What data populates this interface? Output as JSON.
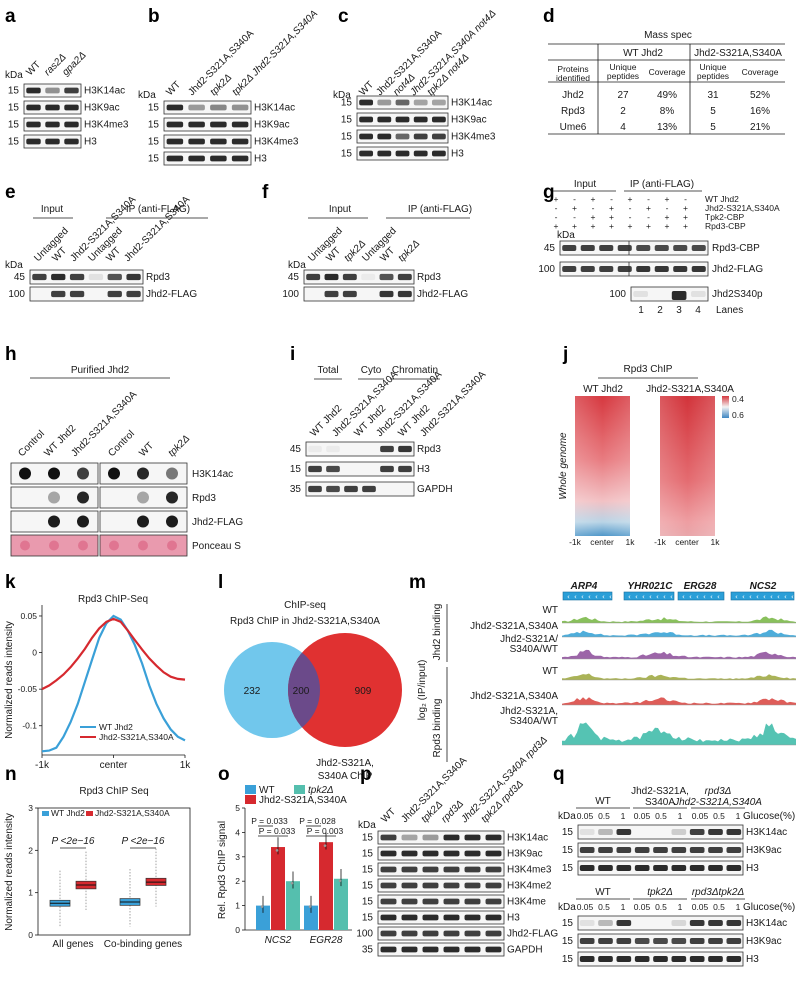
{
  "colors": {
    "wt_blue": "#3aa0d8",
    "mut_red": "#d6292f",
    "tpk2_teal": "#55bfae",
    "venn_blue": "#71c7ec",
    "venn_red": "#e03131",
    "venn_overlap": "#6b4a8a",
    "ponceau": "#e99aae",
    "track_green": "#74b540",
    "track_blue": "#2f9fd3",
    "track_purple": "#8b4a99",
    "track_olive": "#9ba63a",
    "track_red": "#d8413c",
    "track_teal": "#37b8a6"
  },
  "kda": "kDa",
  "panels": {
    "a": {
      "label": "a",
      "lanes": [
        "WT",
        "ras2Δ",
        "gpa2Δ"
      ],
      "mw": [
        "15",
        "15",
        "15",
        "15"
      ],
      "blots": [
        "H3K14ac",
        "H3K9ac",
        "H3K4me3",
        "H3"
      ]
    },
    "b": {
      "label": "b",
      "lanes": [
        "WT",
        "Jhd2-S321A,S340A",
        "tpk2Δ",
        "tpk2Δ Jhd2-S321A,S340A"
      ],
      "mw": [
        "15",
        "15",
        "15",
        "15"
      ],
      "blots": [
        "H3K14ac",
        "H3K9ac",
        "H3K4me3",
        "H3"
      ]
    },
    "c": {
      "label": "c",
      "lanes": [
        "WT",
        "Jhd2-S321A,S340A",
        "not4Δ",
        "Jhd2-S321A,S340A not4Δ",
        "tpk2Δ not4Δ"
      ],
      "mw": [
        "15",
        "15",
        "15",
        "15"
      ],
      "blots": [
        "H3K14ac",
        "H3K9ac",
        "H3K4me3",
        "H3"
      ]
    },
    "d": {
      "label": "d",
      "title": "Mass spec",
      "col_groups": [
        "WT Jhd2",
        "Jhd2-S321A,S340A"
      ],
      "row_header": "Proteins identified",
      "sub_headers": [
        "Unique peptides",
        "Coverage",
        "Unique peptides",
        "Coverage"
      ],
      "rows": [
        {
          "protein": "Jhd2",
          "values": [
            "27",
            "49%",
            "31",
            "52%"
          ]
        },
        {
          "protein": "Rpd3",
          "values": [
            "2",
            "8%",
            "5",
            "16%"
          ]
        },
        {
          "protein": "Ume6",
          "values": [
            "4",
            "13%",
            "5",
            "21%"
          ]
        }
      ]
    },
    "e": {
      "label": "e",
      "input": "Input",
      "ip": "IP (anti-FLAG)",
      "lanes": [
        "Untagged",
        "WT",
        "Jhd2-S321A,S340A",
        "Untagged",
        "WT",
        "Jhd2-S321A,S340A"
      ],
      "mw": [
        "45",
        "100"
      ],
      "blots": [
        "Rpd3",
        "Jhd2-FLAG"
      ]
    },
    "f": {
      "label": "f",
      "input": "Input",
      "ip": "IP (anti-FLAG)",
      "lanes": [
        "Untagged",
        "WT",
        "tpk2Δ",
        "Untagged",
        "WT",
        "tpk2Δ"
      ],
      "mw": [
        "45",
        "100"
      ],
      "blots": [
        "Rpd3",
        "Jhd2-FLAG"
      ]
    },
    "g": {
      "label": "g",
      "input": "Input",
      "ip": "IP (anti-FLAG)",
      "matrix_labels": [
        "WT Jhd2",
        "Jhd2-S321A,S340A",
        "Tpk2-CBP",
        "Rpd3-CBP"
      ],
      "matrix": [
        [
          "+",
          "-",
          "+",
          "-",
          "+",
          "-",
          "+",
          "-"
        ],
        [
          "-",
          "+",
          "-",
          "+",
          "-",
          "+",
          "-",
          "+"
        ],
        [
          "-",
          "-",
          "+",
          "+",
          "-",
          "-",
          "+",
          "+"
        ],
        [
          "+",
          "+",
          "+",
          "+",
          "+",
          "+",
          "+",
          "+"
        ]
      ],
      "mw": [
        "45",
        "100",
        "100"
      ],
      "blots": [
        "Rpd3-CBP",
        "Jhd2-FLAG",
        "Jhd2S340p"
      ],
      "lane_numbers": [
        "1",
        "2",
        "3",
        "4"
      ],
      "lanes_label": "Lanes"
    },
    "h": {
      "label": "h",
      "title": "Purified Jhd2",
      "lanes": [
        "Control",
        "WT Jhd2",
        "Jhd2-S321A,S340A",
        "Control",
        "WT",
        "tpk2Δ"
      ],
      "rows": [
        "H3K14ac",
        "Rpd3",
        "Jhd2-FLAG",
        "Ponceau S"
      ]
    },
    "i": {
      "label": "i",
      "groups": [
        "Total",
        "Cyto",
        "Chromatin"
      ],
      "lanes": [
        "WT Jhd2",
        "Jhd2-S321A,S340A",
        "WT Jhd2",
        "Jhd2-S321A,S340A",
        "WT Jhd2",
        "Jhd2-S321A,S340A"
      ],
      "mw": [
        "45",
        "15",
        "35"
      ],
      "blots": [
        "Rpd3",
        "H3",
        "GAPDH"
      ]
    },
    "j": {
      "label": "j",
      "title": "Rpd3 ChIP",
      "cols": [
        "WT Jhd2",
        "Jhd2-S321A,S340A"
      ],
      "ylabel": "Whole genome",
      "xticks": [
        "-1k",
        "center",
        "1k"
      ],
      "scale": [
        "0.4",
        "0.6"
      ]
    },
    "l": {
      "label": "l",
      "title": "ChIP-seq",
      "left_set": "Rpd3 ChIP in Jhd2-S321A,S340A",
      "right_set": "Jhd2-S321A, S340A ChIP",
      "counts": [
        "232",
        "200",
        "909"
      ]
    },
    "m": {
      "label": "m",
      "genes": [
        "ARP4",
        "YHR021C",
        "ERG28",
        "NCS2"
      ],
      "tracks": [
        "WT",
        "Jhd2-S321A,S340A",
        "Jhd2-S321A/ S340A/WT",
        "WT",
        "Jhd2-S321A,S340A",
        "Jhd2-S321A, S340A/WT"
      ],
      "group_top": "Jhd2 binding",
      "group_bottom": "Rpd3 binding",
      "ylabel": "log₂ (IP/input)"
    },
    "o": {
      "label": "o",
      "legend": [
        "WT",
        "tpk2Δ",
        "Jhd2-S321A,S340A"
      ],
      "pvals": [
        "P = 0.033",
        "P = 0.033",
        "P = 0.028",
        "P = 0.003"
      ]
    },
    "p": {
      "label": "p",
      "lanes": [
        "WT",
        "Jhd2-S321A,S340A",
        "tpk2Δ",
        "rpd3Δ",
        "Jhd2-S321A,S340A rpd3Δ",
        "tpk2Δ rpd3Δ"
      ],
      "mw": [
        "15",
        "15",
        "15",
        "15",
        "15",
        "15",
        "100",
        "35"
      ],
      "blots": [
        "H3K14ac",
        "H3K9ac",
        "H3K4me3",
        "H3K4me2",
        "H3K4me",
        "H3",
        "Jhd2-FLAG",
        "GAPDH"
      ]
    },
    "q": {
      "label": "q",
      "top_groups": [
        "WT",
        "Jhd2-S321A, S340A",
        "rpd3Δ Jhd2-S321A,S340A"
      ],
      "bottom_groups": [
        "WT",
        "tpk2Δ",
        "rpd3Δtpk2Δ"
      ],
      "conc": [
        "0.05",
        "0.5",
        "1"
      ],
      "glucose": "Glucose(%)",
      "mw": [
        "15",
        "15",
        "15"
      ],
      "blots": [
        "H3K14ac",
        "H3K9ac",
        "H3"
      ]
    }
  },
  "chart_data": [
    {
      "panel": "k",
      "type": "line",
      "title": "Rpd3 ChIP-Seq",
      "xlabel": "",
      "ylabel": "Normalized reads intensity",
      "x_ticks": [
        "-1k",
        "center",
        "1k"
      ],
      "y_ticks": [
        "0.05",
        "0",
        "-0.05",
        "-0.1"
      ],
      "ylim": [
        -0.14,
        0.065
      ],
      "x": [
        -1000,
        -900,
        -800,
        -700,
        -600,
        -500,
        -400,
        -300,
        -200,
        -100,
        0,
        100,
        200,
        300,
        400,
        500,
        600,
        700,
        800,
        900,
        1000
      ],
      "series": [
        {
          "name": "WT Jhd2",
          "values": [
            -0.135,
            -0.134,
            -0.13,
            -0.115,
            -0.095,
            -0.07,
            -0.04,
            -0.01,
            0.02,
            0.04,
            0.05,
            0.045,
            0.03,
            0.01,
            -0.015,
            -0.045,
            -0.07,
            -0.09,
            -0.105,
            -0.115,
            -0.12
          ]
        },
        {
          "name": "Jhd2-S321A,S340A",
          "values": [
            -0.05,
            -0.045,
            -0.038,
            -0.03,
            -0.02,
            -0.008,
            0.005,
            0.02,
            0.033,
            0.042,
            0.046,
            0.042,
            0.03,
            0.017,
            0.004,
            -0.008,
            -0.018,
            -0.027,
            -0.033,
            -0.036,
            -0.037
          ]
        }
      ]
    },
    {
      "panel": "n",
      "type": "box",
      "title": "Rpd3 ChIP Seq",
      "ylabel": "Normalized reads intensity",
      "categories": [
        "All genes",
        "Co-binding genes"
      ],
      "ylim": [
        0,
        3
      ],
      "y_ticks": [
        "0",
        "1",
        "2",
        "3"
      ],
      "series": [
        {
          "name": "WT Jhd2",
          "medians": [
            0.75,
            0.78
          ],
          "q1": [
            0.68,
            0.7
          ],
          "q3": [
            0.82,
            0.86
          ]
        },
        {
          "name": "Jhd2-S321A,S340A",
          "medians": [
            1.18,
            1.25
          ],
          "q1": [
            1.09,
            1.17
          ],
          "q3": [
            1.27,
            1.34
          ]
        }
      ],
      "annotations": [
        "P <2e−16",
        "P <2e−16"
      ]
    },
    {
      "panel": "o",
      "type": "bar",
      "ylabel": "Rel. Rpd3 ChIP signal",
      "categories": [
        "NCS2",
        "EGR28"
      ],
      "ylim": [
        0,
        5
      ],
      "y_ticks": [
        "0",
        "1",
        "2",
        "3",
        "4",
        "5"
      ],
      "series": [
        {
          "name": "WT",
          "values": [
            1.0,
            1.0
          ]
        },
        {
          "name": "Jhd2-S321A,S340A",
          "values": [
            3.4,
            3.6
          ]
        },
        {
          "name": "tpk2Δ",
          "values": [
            2.0,
            2.1
          ]
        }
      ]
    }
  ]
}
